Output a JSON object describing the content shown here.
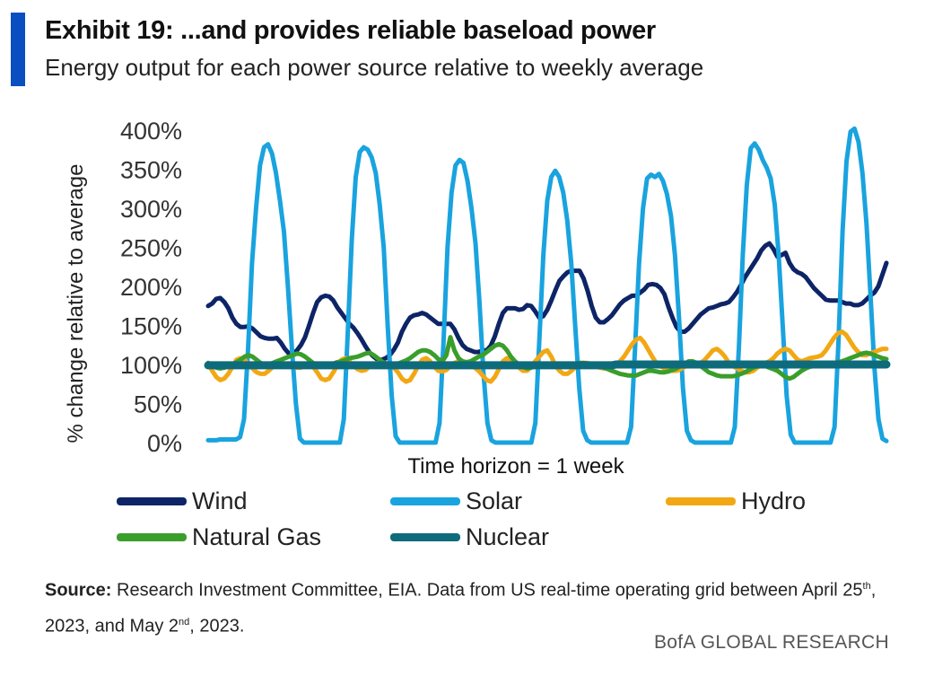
{
  "header": {
    "title": "Exhibit 19: ...and provides reliable baseload power",
    "subtitle": "Energy output for each power source relative to weekly average"
  },
  "chart_data": {
    "type": "line",
    "title": "",
    "xlabel": "Time horizon = 1 week",
    "ylabel": "% change relative to average",
    "ylim": [
      0,
      400
    ],
    "yticks": [
      "0%",
      "50%",
      "100%",
      "150%",
      "200%",
      "250%",
      "300%",
      "350%",
      "400%"
    ],
    "x_points": 169,
    "series": [
      {
        "name": "Wind",
        "color": "#0d2466",
        "values": [
          175,
          178,
          184,
          185,
          180,
          172,
          160,
          152,
          148,
          148,
          149,
          146,
          141,
          136,
          134,
          133,
          133,
          134,
          128,
          120,
          114,
          114,
          118,
          125,
          135,
          150,
          166,
          180,
          186,
          188,
          187,
          182,
          173,
          166,
          159,
          152,
          147,
          140,
          132,
          123,
          115,
          110,
          106,
          106,
          108,
          112,
          119,
          128,
          142,
          152,
          160,
          163,
          164,
          166,
          164,
          160,
          156,
          152,
          152,
          152,
          152,
          145,
          134,
          125,
          120,
          118,
          116,
          116,
          118,
          118,
          124,
          136,
          152,
          166,
          172,
          172,
          172,
          170,
          171,
          176,
          175,
          168,
          160,
          162,
          170,
          182,
          195,
          207,
          213,
          218,
          220,
          220,
          220,
          210,
          194,
          175,
          160,
          154,
          154,
          158,
          163,
          170,
          177,
          182,
          185,
          188,
          188,
          192,
          196,
          202,
          203,
          202,
          198,
          190,
          174,
          160,
          148,
          142,
          142,
          146,
          152,
          158,
          164,
          168,
          172,
          173,
          175,
          177,
          178,
          180,
          186,
          193,
          202,
          212,
          220,
          228,
          236,
          246,
          252,
          255,
          248,
          238,
          240,
          243,
          230,
          222,
          218,
          216,
          212,
          205,
          198,
          193,
          188,
          183,
          182,
          182,
          182,
          180,
          178,
          178,
          176,
          176,
          178,
          183,
          188,
          192,
          200,
          215,
          230
        ]
      },
      {
        "name": "Solar",
        "color": "#19a3df",
        "values": [
          3,
          3,
          3,
          4,
          4,
          4,
          4,
          4,
          7,
          30,
          120,
          230,
          300,
          355,
          378,
          382,
          370,
          345,
          310,
          270,
          200,
          120,
          50,
          5,
          0,
          0,
          0,
          0,
          0,
          0,
          0,
          0,
          0,
          0,
          30,
          140,
          260,
          340,
          372,
          378,
          375,
          365,
          345,
          305,
          250,
          150,
          60,
          8,
          0,
          0,
          0,
          0,
          0,
          0,
          0,
          0,
          0,
          0,
          25,
          130,
          250,
          320,
          355,
          362,
          358,
          335,
          300,
          255,
          180,
          90,
          25,
          3,
          0,
          0,
          0,
          0,
          0,
          0,
          0,
          0,
          0,
          0,
          25,
          130,
          240,
          310,
          340,
          348,
          340,
          320,
          285,
          230,
          150,
          70,
          15,
          3,
          0,
          0,
          0,
          0,
          0,
          0,
          0,
          0,
          0,
          0,
          20,
          120,
          230,
          300,
          338,
          343,
          340,
          344,
          335,
          318,
          290,
          240,
          160,
          70,
          15,
          3,
          0,
          0,
          0,
          0,
          0,
          0,
          0,
          0,
          0,
          0,
          20,
          120,
          240,
          330,
          377,
          383,
          375,
          362,
          352,
          338,
          305,
          240,
          150,
          60,
          10,
          0,
          0,
          0,
          0,
          0,
          0,
          0,
          0,
          0,
          0,
          20,
          130,
          270,
          360,
          398,
          402,
          385,
          345,
          280,
          190,
          95,
          30,
          5,
          2
        ]
      },
      {
        "name": "Hydro",
        "color": "#f2a814",
        "values": [
          100,
          92,
          84,
          80,
          82,
          88,
          97,
          106,
          108,
          106,
          100,
          95,
          90,
          88,
          88,
          92,
          97,
          100,
          102,
          101,
          99,
          97,
          96,
          96,
          99,
          100,
          97,
          90,
          82,
          80,
          82,
          90,
          99,
          106,
          108,
          104,
          98,
          94,
          92,
          93,
          98,
          101,
          102,
          102,
          102,
          100,
          96,
          90,
          82,
          78,
          80,
          88,
          98,
          106,
          108,
          104,
          97,
          92,
          91,
          93,
          98,
          102,
          104,
          104,
          102,
          99,
          96,
          92,
          86,
          80,
          78,
          84,
          94,
          104,
          108,
          106,
          101,
          96,
          92,
          92,
          97,
          104,
          110,
          116,
          118,
          110,
          99,
          92,
          88,
          88,
          92,
          97,
          101,
          102,
          102,
          100,
          98,
          96,
          95,
          95,
          97,
          100,
          104,
          110,
          118,
          126,
          132,
          134,
          128,
          119,
          110,
          102,
          98,
          95,
          93,
          92,
          92,
          94,
          97,
          99,
          100,
          100,
          102,
          106,
          112,
          118,
          120,
          116,
          110,
          102,
          98,
          95,
          92,
          90,
          90,
          92,
          96,
          100,
          102,
          104,
          108,
          114,
          118,
          120,
          118,
          112,
          106,
          104,
          106,
          108,
          109,
          110,
          112,
          118,
          126,
          134,
          140,
          142,
          138,
          130,
          122,
          116,
          112,
          112,
          114,
          116,
          118,
          120,
          120
        ]
      },
      {
        "name": "Natural Gas",
        "color": "#3a9e2a",
        "values": [
          102,
          99,
          96,
          95,
          96,
          98,
          100,
          103,
          106,
          110,
          112,
          110,
          106,
          102,
          100,
          100,
          102,
          104,
          106,
          108,
          110,
          112,
          114,
          113,
          110,
          106,
          102,
          99,
          98,
          98,
          99,
          101,
          103,
          104,
          106,
          108,
          109,
          110,
          112,
          114,
          115,
          112,
          108,
          104,
          101,
          100,
          100,
          101,
          103,
          105,
          108,
          112,
          116,
          118,
          118,
          116,
          112,
          107,
          104,
          112,
          135,
          118,
          108,
          104,
          103,
          104,
          107,
          110,
          112,
          116,
          120,
          124,
          126,
          124,
          118,
          110,
          104,
          100,
          97,
          95,
          96,
          98,
          100,
          101,
          101,
          100,
          99,
          98,
          98,
          99,
          100,
          101,
          102,
          102,
          101,
          100,
          99,
          98,
          96,
          94,
          92,
          90,
          88,
          87,
          86,
          86,
          86,
          88,
          90,
          92,
          92,
          91,
          90,
          90,
          91,
          93,
          95,
          98,
          101,
          104,
          104,
          102,
          98,
          94,
          90,
          88,
          86,
          85,
          85,
          85,
          85,
          86,
          88,
          90,
          93,
          96,
          98,
          99,
          98,
          96,
          94,
          92,
          88,
          84,
          82,
          84,
          88,
          92,
          95,
          97,
          98,
          98,
          99,
          100,
          101,
          102,
          103,
          104,
          106,
          108,
          110,
          112,
          114,
          115,
          114,
          112,
          110,
          108,
          107
        ]
      },
      {
        "name": "Nuclear",
        "color": "#0e6b7c",
        "values": [
          99,
          99,
          99,
          99,
          99,
          99,
          99,
          99,
          99,
          99,
          99,
          99,
          99,
          99,
          99,
          99,
          99,
          99,
          99,
          99,
          99,
          99,
          99,
          99,
          99,
          99,
          99,
          99,
          99,
          99,
          99,
          99,
          99,
          99,
          99,
          99,
          99,
          99,
          99,
          99,
          99,
          99,
          99,
          99,
          99,
          99,
          99,
          99,
          99,
          99,
          99,
          99,
          99,
          99,
          99,
          99,
          99,
          99,
          99,
          99,
          99,
          99,
          99,
          99,
          99,
          99,
          99,
          99,
          99,
          99,
          99,
          99,
          99,
          99,
          99,
          99,
          99,
          99,
          99,
          99,
          99,
          99,
          99,
          99,
          99,
          99,
          99,
          99,
          99,
          99,
          99,
          99,
          99,
          99,
          99,
          99,
          99,
          99,
          99,
          99,
          99,
          100,
          100,
          100,
          100,
          100,
          100,
          100,
          100,
          100,
          100,
          100,
          100,
          100,
          100,
          100,
          100,
          100,
          100,
          100,
          100,
          100,
          100,
          100,
          100,
          100,
          100,
          100,
          100,
          100,
          100,
          100,
          100,
          100,
          100,
          100,
          100,
          100,
          100,
          100,
          100,
          100,
          100,
          100,
          100,
          100,
          100,
          100,
          100,
          100,
          100,
          100,
          100,
          100,
          100,
          100,
          100,
          100,
          100,
          100,
          100,
          100,
          100,
          100,
          100,
          100,
          100,
          100,
          100
        ]
      }
    ]
  },
  "legend": [
    {
      "label": "Wind",
      "color": "#0d2466"
    },
    {
      "label": "Solar",
      "color": "#19a3df"
    },
    {
      "label": "Hydro",
      "color": "#f2a814"
    },
    {
      "label": "Natural Gas",
      "color": "#3a9e2a"
    },
    {
      "label": "Nuclear",
      "color": "#0e6b7c"
    }
  ],
  "footer": {
    "source_label": "Source:",
    "source_text_1": "Research Investment Committee, EIA. Data from US real-time operating grid between April 25",
    "sup_1": "th",
    "source_text_2": ", 2023, and May 2",
    "sup_2": "nd",
    "source_text_3": ", 2023.",
    "brand": "BofA GLOBAL RESEARCH"
  },
  "accent_color": "#0a4fc2"
}
